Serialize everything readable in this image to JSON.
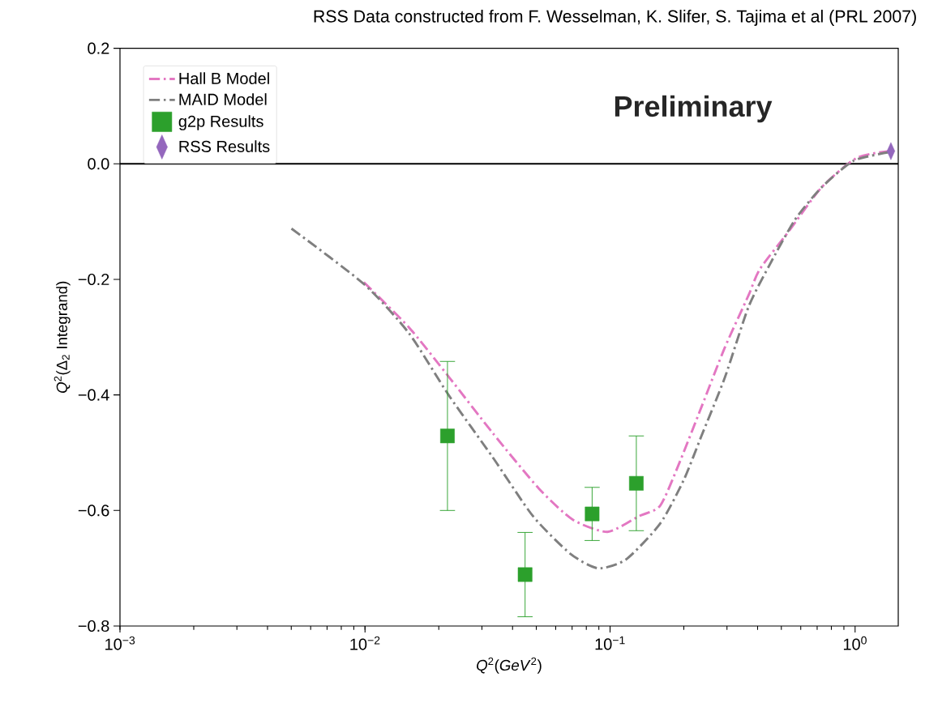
{
  "chart_data": {
    "type": "line",
    "annotations": [
      "RSS Data constructed from F. Wesselman, K. Slifer, S. Tajima et al (PRL 2007)",
      "Preliminary"
    ],
    "xlabel": "*Q*$^{2}$(*GeV*$^{2}$)",
    "ylabel": "*Q*$^{2}$(Δ$_{2}$ Integrand)",
    "log": "x",
    "xlim": [
      0.001,
      1.5
    ],
    "ylim": [
      -0.8,
      0.2
    ],
    "xticks": [
      {
        "value": 0.001,
        "label": "10$^{−3}$"
      },
      {
        "value": 0.01,
        "label": "10$^{−2}$"
      },
      {
        "value": 0.1,
        "label": "10$^{−1}$"
      },
      {
        "value": 1,
        "label": "10$^{0}$"
      }
    ],
    "yticks": [
      {
        "value": -0.8,
        "label": "−0.8"
      },
      {
        "value": -0.6,
        "label": "−0.6"
      },
      {
        "value": -0.4,
        "label": "−0.4"
      },
      {
        "value": -0.2,
        "label": "−0.2"
      },
      {
        "value": 0,
        "label": "0.0"
      },
      {
        "value": 0.2,
        "label": "0.2"
      }
    ],
    "legend": "top left",
    "grid": false,
    "ref_lines": [
      {
        "axis": "y",
        "value": 0,
        "color": "#000000",
        "line_style": "solid"
      }
    ],
    "series": [
      {
        "name": "Hall B Model",
        "color": "#e377c2",
        "line_style": "dashdot",
        "marker": "none",
        "x": [
          0.00989,
          0.0151,
          0.022,
          0.0332,
          0.0512,
          0.0705,
          0.0977,
          0.131,
          0.16,
          0.19,
          0.236,
          0.294,
          0.367,
          0.409,
          0.538,
          0.729,
          1.012,
          1.371
        ],
        "values": [
          -0.205,
          -0.283,
          -0.369,
          -0.466,
          -0.562,
          -0.616,
          -0.637,
          -0.61,
          -0.592,
          -0.522,
          -0.421,
          -0.318,
          -0.228,
          -0.182,
          -0.116,
          -0.041,
          0.01,
          0.022
        ]
      },
      {
        "name": "MAID Model",
        "color": "#7f7f7f",
        "line_style": "dashdot",
        "marker": "none",
        "x": [
          0.00501,
          0.00989,
          0.0151,
          0.022,
          0.0332,
          0.0485,
          0.0689,
          0.0891,
          0.116,
          0.16,
          0.2,
          0.236,
          0.294,
          0.367,
          0.445,
          0.568,
          0.729,
          0.982,
          1.371
        ],
        "values": [
          -0.112,
          -0.208,
          -0.293,
          -0.401,
          -0.508,
          -0.61,
          -0.675,
          -0.7,
          -0.685,
          -0.623,
          -0.547,
          -0.471,
          -0.37,
          -0.248,
          -0.177,
          -0.097,
          -0.041,
          0.005,
          0.02
        ]
      },
      {
        "name": "g2p Results",
        "type": "scatter",
        "color": "#2ca02c",
        "marker": "square",
        "x": [
          0.0217,
          0.045,
          0.0845,
          0.128
        ],
        "values": [
          -0.471,
          -0.711,
          -0.606,
          -0.553
        ],
        "errors": [
          0.129,
          0.073,
          0.046,
          0.082
        ]
      },
      {
        "name": "RSS Results",
        "type": "scatter",
        "color": "#9467bd",
        "marker": "diamond",
        "x": [
          1.4
        ],
        "values": [
          0.022
        ]
      }
    ]
  }
}
